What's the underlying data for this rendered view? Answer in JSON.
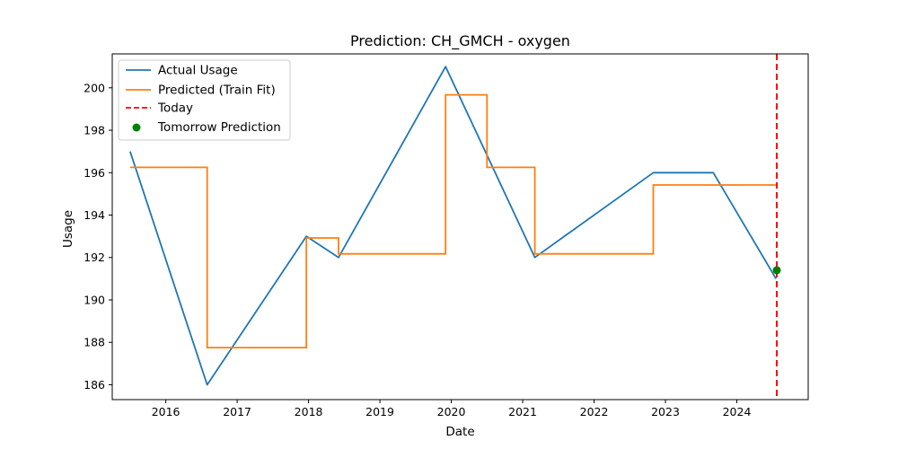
{
  "chart_data": {
    "type": "line",
    "title": "Prediction: CH_GMCH - oxygen",
    "xlabel": "Date",
    "ylabel": "Usage",
    "xlim": [
      2015.25,
      2025.0
    ],
    "ylim": [
      185.3,
      201.6
    ],
    "x_ticks": [
      2016,
      2017,
      2018,
      2019,
      2020,
      2021,
      2022,
      2023,
      2024
    ],
    "y_ticks": [
      186,
      188,
      190,
      192,
      194,
      196,
      198,
      200
    ],
    "grid": false,
    "legend_position": "top-left",
    "series": [
      {
        "name": "Actual Usage",
        "kind": "line",
        "color": "#1f77b4",
        "x": [
          2015.5,
          2016.58,
          2017.97,
          2018.42,
          2019.92,
          2021.17,
          2022.83,
          2023.67,
          2024.55
        ],
        "y": [
          197,
          186,
          193,
          192,
          201,
          192,
          196,
          196,
          191
        ]
      },
      {
        "name": "Predicted (Train Fit)",
        "kind": "step",
        "color": "#ff7f0e",
        "x": [
          2015.5,
          2016.58,
          2017.97,
          2018.42,
          2019.92,
          2020.5,
          2021.17,
          2022.83,
          2024.55
        ],
        "y": [
          196.25,
          187.75,
          192.92,
          192.17,
          199.67,
          196.25,
          192.17,
          195.42,
          195.42
        ]
      },
      {
        "name": "Today",
        "kind": "vline",
        "color": "#ff0000",
        "x": 2024.56
      },
      {
        "name": "Tomorrow Prediction",
        "kind": "point",
        "color": "#008000",
        "x": 2024.56,
        "y": 191.4
      }
    ]
  }
}
